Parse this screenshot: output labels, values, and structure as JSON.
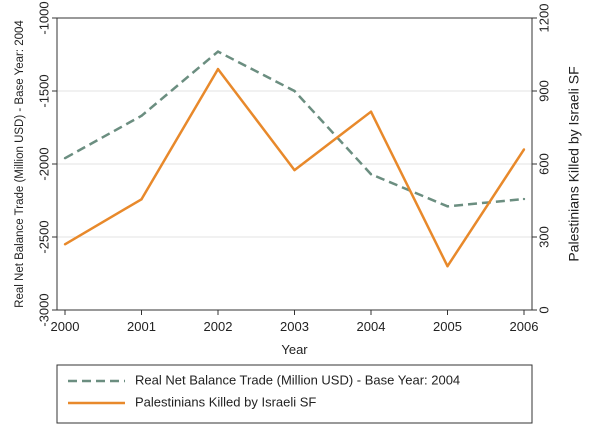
{
  "chart_data": {
    "type": "line",
    "x": [
      2000,
      2001,
      2002,
      2003,
      2004,
      2005,
      2006
    ],
    "xlabel": "Year",
    "ylabel_left": "Real Net Balance Trade (Million USD) - Base Year: 2004",
    "ylabel_right": "Palestinians Killed by Israeli SF",
    "ylim_left": [
      -3000,
      -1000
    ],
    "ylim_right": [
      0,
      1200
    ],
    "yticks_left": [
      -3000,
      -2500,
      -2000,
      -1500,
      -1000
    ],
    "yticks_right": [
      0,
      300,
      600,
      900,
      1200
    ],
    "grid": true,
    "legend_position": "bottom",
    "series": [
      {
        "name": "Real Net Balance Trade (Million USD) - Base Year: 2004",
        "axis": "left",
        "style": "dashed",
        "color": "#6b8e80",
        "values": [
          -1960,
          -1670,
          -1230,
          -1500,
          -2070,
          -2290,
          -2240
        ]
      },
      {
        "name": "Palestinians Killed by Israeli SF",
        "axis": "right",
        "style": "solid",
        "color": "#e8892b",
        "values": [
          270,
          455,
          990,
          575,
          815,
          180,
          660
        ]
      }
    ]
  }
}
